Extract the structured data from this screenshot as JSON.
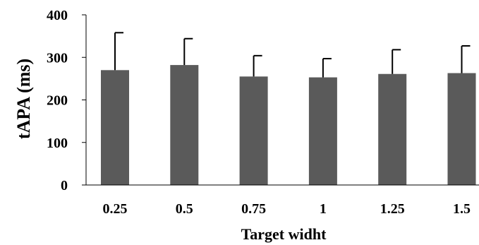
{
  "chart_data": {
    "type": "bar",
    "title": "",
    "xlabel": "Target widht",
    "ylabel": "tAPA (ms)",
    "categories": [
      "0.25",
      "0.5",
      "0.75",
      "1",
      "1.25",
      "1.5"
    ],
    "values": [
      270,
      282,
      255,
      253,
      261,
      263
    ],
    "error_upper": [
      88,
      62,
      49,
      44,
      57,
      64
    ],
    "ylim": [
      0,
      400
    ],
    "yticks": [
      0,
      100,
      200,
      300,
      400
    ],
    "grid": false,
    "legend": "none",
    "colors": {
      "bar": "#5a5a5a",
      "axis": "#000000",
      "error_bar": "#000000"
    }
  }
}
